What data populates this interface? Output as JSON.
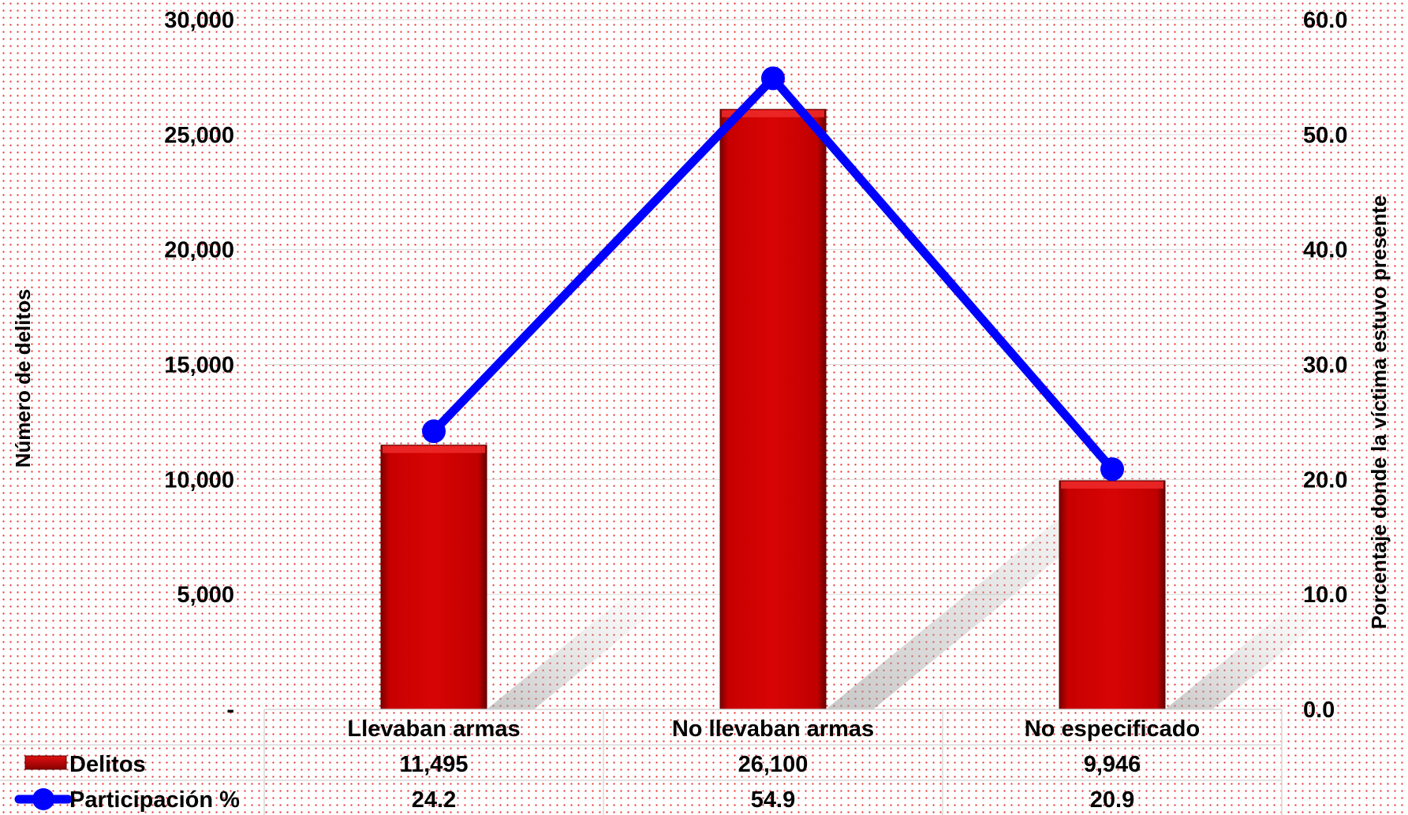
{
  "chart_data": {
    "type": "bar",
    "categories": [
      "Llevaban armas",
      "No llevaban armas",
      "No especificado"
    ],
    "series": [
      {
        "name": "Delitos",
        "kind": "bar",
        "axis": "left",
        "values": [
          11495,
          26100,
          9946
        ],
        "labels": [
          "11,495",
          "26,100",
          "9,946"
        ],
        "color": "#cc0000"
      },
      {
        "name": "Participación %",
        "kind": "line",
        "axis": "right",
        "values": [
          24.2,
          54.9,
          20.9
        ],
        "labels": [
          "24.2",
          "54.9",
          "20.9"
        ],
        "color": "#0000ff"
      }
    ],
    "ylabel": "Número de delitos",
    "y2label": "Porcentaje donde la víctima estuvo presente",
    "ylim": [
      0,
      30000
    ],
    "y2lim": [
      0,
      60
    ],
    "yticks": [
      0,
      5000,
      10000,
      15000,
      20000,
      25000,
      30000
    ],
    "yticklabels": [
      "-",
      "5,000",
      "10,000",
      "15,000",
      "20,000",
      "25,000",
      "30,000"
    ],
    "y2ticks": [
      0,
      10,
      20,
      30,
      40,
      50,
      60
    ],
    "y2ticklabels": [
      "0.0",
      "10.0",
      "20.0",
      "30.0",
      "40.0",
      "50.0",
      "60.0"
    ],
    "grid": true,
    "data_table": true
  }
}
